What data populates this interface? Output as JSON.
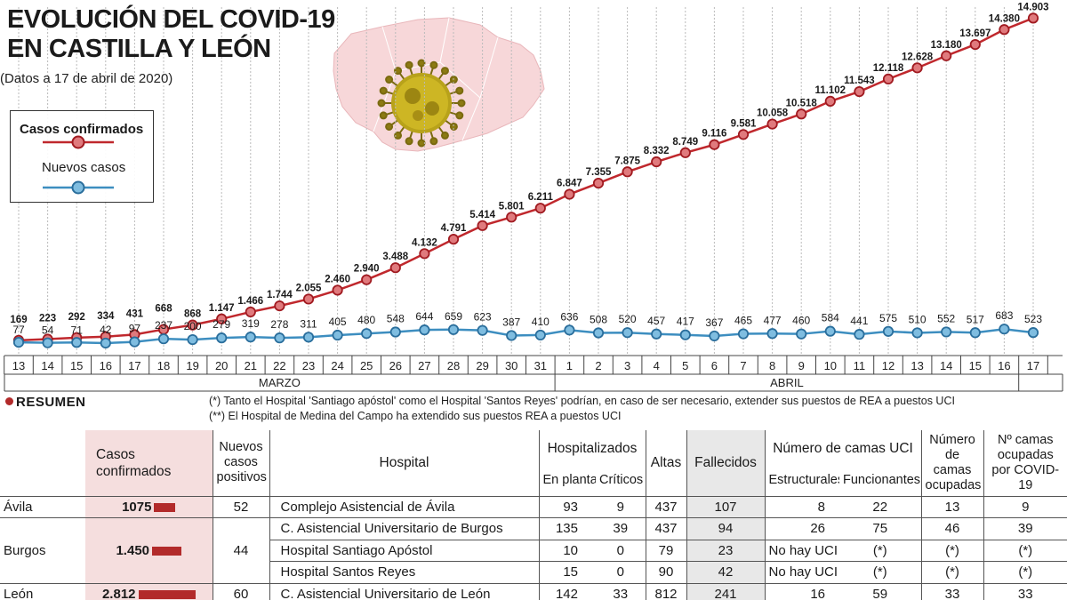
{
  "title": {
    "line1": "EVOLUCIÓN DEL COVID-19",
    "line2": "EN CASTILLA Y LEÓN"
  },
  "subtitle": "(Datos a 17 de abril de 2020)",
  "legend": {
    "confirmed": "Casos confirmados",
    "new": "Nuevos casos"
  },
  "colors": {
    "confirmed": "#c0282d",
    "new": "#3d8ec0",
    "pink": "#f5dede",
    "gray": "#e8e8e8"
  },
  "chart_data": {
    "type": "line",
    "x": [
      "13",
      "14",
      "15",
      "16",
      "17",
      "18",
      "19",
      "20",
      "21",
      "22",
      "23",
      "24",
      "25",
      "26",
      "27",
      "28",
      "29",
      "30",
      "31",
      "1",
      "2",
      "3",
      "4",
      "5",
      "6",
      "7",
      "8",
      "9",
      "10",
      "11",
      "12",
      "13",
      "14",
      "15",
      "16",
      "17"
    ],
    "months": [
      {
        "label": "MARZO"
      },
      {
        "label": "ABRIL"
      }
    ],
    "series": [
      {
        "name": "Casos confirmados",
        "values": [
          169,
          223,
          292,
          334,
          431,
          668,
          868,
          1147,
          1466,
          1744,
          2055,
          2460,
          2940,
          3488,
          4132,
          4791,
          5414,
          5801,
          6211,
          6847,
          7355,
          7875,
          8332,
          8749,
          9116,
          9581,
          10058,
          10518,
          11102,
          11543,
          12118,
          12628,
          13180,
          13697,
          14380,
          14903
        ],
        "labels": [
          "169",
          "223",
          "292",
          "334",
          "431",
          "668",
          "868",
          "1.147",
          "1.466",
          "1.744",
          "2.055",
          "2.460",
          "2.940",
          "3.488",
          "4.132",
          "4.791",
          "5.414",
          "5.801",
          "6.211",
          "6.847",
          "7.355",
          "7.875",
          "8.332",
          "8.749",
          "9.116",
          "9.581",
          "10.058",
          "10.518",
          "11.102",
          "11.543",
          "12.118",
          "12.628",
          "13.180",
          "13.697",
          "14.380",
          "14.903"
        ]
      },
      {
        "name": "Nuevos casos",
        "values": [
          77,
          54,
          71,
          42,
          97,
          237,
          200,
          279,
          319,
          278,
          311,
          405,
          480,
          548,
          644,
          659,
          623,
          387,
          410,
          636,
          508,
          520,
          457,
          417,
          367,
          465,
          477,
          460,
          584,
          441,
          575,
          510,
          552,
          517,
          683,
          523
        ],
        "labels": [
          "77",
          "54",
          "71",
          "42",
          "97",
          "237",
          "200",
          "279",
          "319",
          "278",
          "311",
          "405",
          "480",
          "548",
          "644",
          "659",
          "623",
          "387",
          "410",
          "636",
          "508",
          "520",
          "457",
          "417",
          "367",
          "465",
          "477",
          "460",
          "584",
          "441",
          "575",
          "510",
          "552",
          "517",
          "683",
          "523"
        ]
      }
    ],
    "ylim": [
      0,
      15000
    ],
    "grid": "vertical-dashed"
  },
  "resumen": {
    "label": "RESUMEN"
  },
  "notes": [
    "(*) Tanto el Hospital 'Santiago apóstol' como el Hospital 'Santos Reyes' podrían, en caso de ser necesario, extender sus puestos de REA a puestos UCI",
    "(**) El Hospital de Medina del Campo ha extendido sus puestos REA a puestos UCI"
  ],
  "table": {
    "headers": {
      "casos": "Casos confirmados",
      "nuevos": "Nuevos casos positivos",
      "hospital": "Hospital",
      "hospitalizados": "Hospitalizados",
      "en_planta": "En planta",
      "criticos": "Críticos",
      "altas": "Altas",
      "fallecidos": "Fallecidos",
      "camas_uci": "Número de camas UCI",
      "estructurales": "Estructurales",
      "funcionantes": "Funcionantes",
      "ocupadas": "Número de camas ocupadas",
      "covid": "Nº camas ocupadas por COVID-19"
    },
    "provinces": [
      {
        "name": "Ávila",
        "casos": "1075",
        "casos_value": 1075,
        "nuevos": "52",
        "rows": [
          {
            "hospital": "Complejo Asistencial de Ávila",
            "planta": "93",
            "criticos": "9",
            "altas": "437",
            "fallecidos": "107",
            "estructurales": "8",
            "funcionantes": "22",
            "ocupadas": "13",
            "covid": "9"
          }
        ]
      },
      {
        "name": "Burgos",
        "casos": "1.450",
        "casos_value": 1450,
        "nuevos": "44",
        "rows": [
          {
            "hospital": "C. Asistencial Universitario de Burgos",
            "planta": "135",
            "criticos": "39",
            "altas": "437",
            "fallecidos": "94",
            "estructurales": "26",
            "funcionantes": "75",
            "ocupadas": "46",
            "covid": "39"
          },
          {
            "hospital": "Hospital Santiago Apóstol",
            "planta": "10",
            "criticos": "0",
            "altas": "79",
            "fallecidos": "23",
            "estructurales": "No hay UCI",
            "funcionantes": "(*)",
            "ocupadas": "(*)",
            "covid": "(*)"
          },
          {
            "hospital": "Hospital Santos Reyes",
            "planta": "15",
            "criticos": "0",
            "altas": "90",
            "fallecidos": "42",
            "estructurales": "No hay UCI",
            "funcionantes": "(*)",
            "ocupadas": "(*)",
            "covid": "(*)"
          }
        ]
      },
      {
        "name": "León",
        "casos": "2.812",
        "casos_value": 2812,
        "nuevos": "60",
        "rows": [
          {
            "hospital": "C. Asistencial Universitario de León",
            "planta": "142",
            "criticos": "33",
            "altas": "812",
            "fallecidos": "241",
            "estructurales": "16",
            "funcionantes": "59",
            "ocupadas": "33",
            "covid": "33"
          }
        ]
      }
    ]
  }
}
